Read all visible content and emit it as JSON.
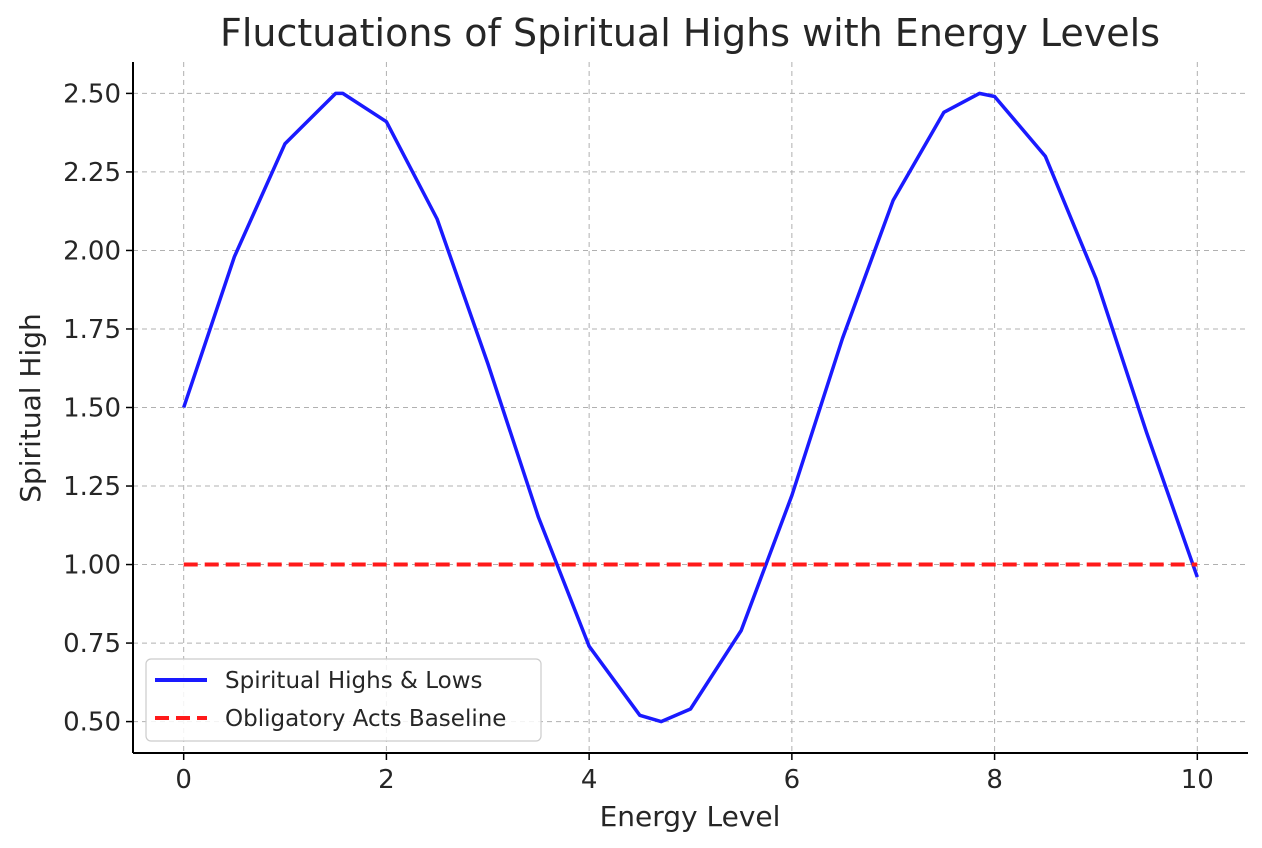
{
  "chart_data": {
    "type": "line",
    "title": "Fluctuations of Spiritual Highs with Energy Levels",
    "xlabel": "Energy Level",
    "ylabel": "Spiritual High",
    "xlim": [
      -0.5,
      10.5
    ],
    "ylim": [
      0.4,
      2.6
    ],
    "grid": true,
    "legend_position": "lower-left",
    "x_ticks": [
      0,
      2,
      4,
      6,
      8,
      10
    ],
    "x_tick_labels": [
      "0",
      "2",
      "4",
      "6",
      "8",
      "10"
    ],
    "y_ticks": [
      0.5,
      0.75,
      1.0,
      1.25,
      1.5,
      1.75,
      2.0,
      2.25,
      2.5
    ],
    "y_tick_labels": [
      "0.50",
      "0.75",
      "1.00",
      "1.25",
      "1.50",
      "1.75",
      "2.00",
      "2.25",
      "2.50"
    ],
    "series": [
      {
        "name": "Spiritual Highs & Lows",
        "color": "#1a1aff",
        "style": "solid",
        "x": [
          0,
          0.5,
          1.0,
          1.5,
          1.57,
          2.0,
          2.5,
          3.0,
          3.5,
          4.0,
          4.5,
          4.71,
          5.0,
          5.5,
          6.0,
          6.5,
          7.0,
          7.5,
          7.85,
          8.0,
          8.5,
          9.0,
          9.5,
          10.0
        ],
        "y": [
          1.5,
          1.98,
          2.34,
          2.5,
          2.5,
          2.41,
          2.1,
          1.64,
          1.15,
          0.74,
          0.52,
          0.5,
          0.54,
          0.79,
          1.22,
          1.72,
          2.16,
          2.44,
          2.5,
          2.49,
          2.3,
          1.91,
          1.42,
          0.96
        ]
      },
      {
        "name": "Obligatory Acts Baseline",
        "color": "#ff1a1a",
        "style": "dashed",
        "x": [
          0,
          10
        ],
        "y": [
          1.0,
          1.0
        ]
      }
    ]
  }
}
